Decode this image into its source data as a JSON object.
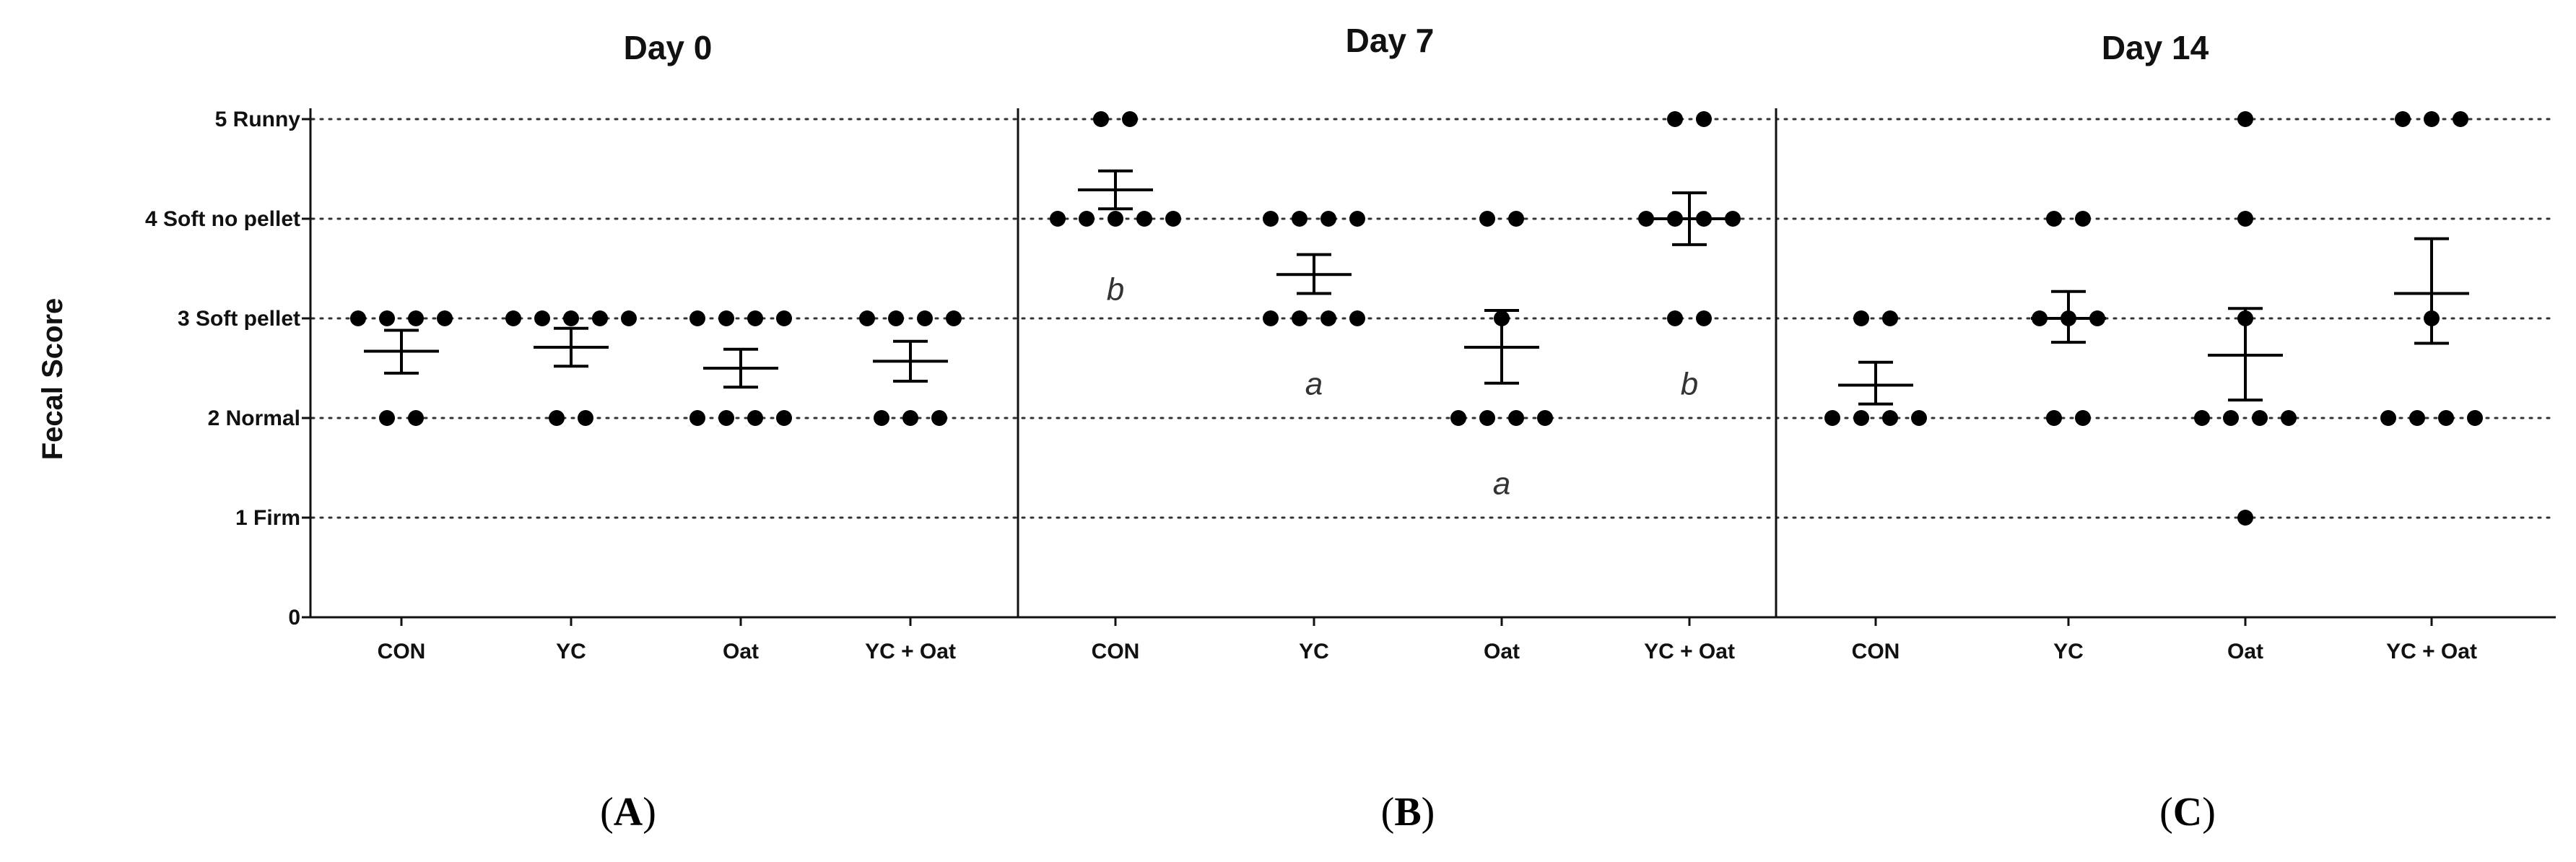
{
  "chart_data": {
    "type": "scatter",
    "ylabel": "Fecal Score",
    "ylim": [
      0,
      5
    ],
    "yticks": [
      {
        "value": 5,
        "label": "5 Runny"
      },
      {
        "value": 4,
        "label": "4 Soft no pellet"
      },
      {
        "value": 3,
        "label": "3 Soft pellet"
      },
      {
        "value": 2,
        "label": "2 Normal"
      },
      {
        "value": 1,
        "label": "1 Firm"
      },
      {
        "value": 0,
        "label": "0"
      }
    ],
    "grid": "dotted horizontal at 1-5",
    "categories": [
      "CON",
      "YC",
      "Oat",
      "YC + Oat"
    ],
    "panels": [
      {
        "title": "Day 0",
        "caption_open": "(",
        "caption_letter": "A",
        "caption_close": ")",
        "groups": [
          {
            "category": "CON",
            "points": [
              3,
              3,
              3,
              3,
              2,
              2
            ],
            "mean": 2.67,
            "sem_low": 2.45,
            "sem_high": 2.88,
            "annotation": ""
          },
          {
            "category": "YC",
            "points": [
              3,
              3,
              3,
              3,
              3,
              2,
              2
            ],
            "mean": 2.71,
            "sem_low": 2.52,
            "sem_high": 2.9,
            "annotation": ""
          },
          {
            "category": "Oat",
            "points": [
              3,
              3,
              3,
              3,
              2,
              2,
              2,
              2
            ],
            "mean": 2.5,
            "sem_low": 2.31,
            "sem_high": 2.69,
            "annotation": ""
          },
          {
            "category": "YC + Oat",
            "points": [
              3,
              3,
              3,
              3,
              2,
              2,
              2
            ],
            "mean": 2.57,
            "sem_low": 2.37,
            "sem_high": 2.77,
            "annotation": ""
          }
        ]
      },
      {
        "title": "Day 7",
        "caption_open": "(",
        "caption_letter": "B",
        "caption_close": ")",
        "groups": [
          {
            "category": "CON",
            "points": [
              5,
              5,
              4,
              4,
              4,
              4,
              4
            ],
            "mean": 4.29,
            "sem_low": 4.1,
            "sem_high": 4.48,
            "annotation": "b",
            "annotation_y": 3.3
          },
          {
            "category": "YC",
            "points": [
              4,
              4,
              4,
              4,
              3,
              3,
              3,
              3
            ],
            "mean": 3.44,
            "sem_low": 3.25,
            "sem_high": 3.64,
            "annotation": "a",
            "annotation_y": 2.35
          },
          {
            "category": "Oat",
            "points": [
              4,
              4,
              3,
              2,
              2,
              2,
              2
            ],
            "mean": 2.71,
            "sem_low": 2.35,
            "sem_high": 3.08,
            "annotation": "a",
            "annotation_y": 1.35
          },
          {
            "category": "YC + Oat",
            "points": [
              5,
              5,
              4,
              4,
              4,
              4,
              3,
              3
            ],
            "mean": 4.0,
            "sem_low": 3.74,
            "sem_high": 4.26,
            "annotation": "b",
            "annotation_y": 2.35
          }
        ]
      },
      {
        "title": "Day 14",
        "caption_open": "(",
        "caption_letter": "C",
        "caption_close": ")",
        "groups": [
          {
            "category": "CON",
            "points": [
              3,
              3,
              2,
              2,
              2,
              2
            ],
            "mean": 2.33,
            "sem_low": 2.14,
            "sem_high": 2.56,
            "annotation": ""
          },
          {
            "category": "YC",
            "points": [
              4,
              4,
              3,
              3,
              3,
              2,
              2
            ],
            "mean": 3.0,
            "sem_low": 2.76,
            "sem_high": 3.27,
            "annotation": ""
          },
          {
            "category": "Oat",
            "points": [
              5,
              4,
              3,
              2,
              2,
              2,
              2,
              1
            ],
            "mean": 2.63,
            "sem_low": 2.18,
            "sem_high": 3.1,
            "annotation": ""
          },
          {
            "category": "YC + Oat",
            "points": [
              5,
              5,
              5,
              3,
              2,
              2,
              2,
              2
            ],
            "mean": 3.25,
            "sem_low": 2.75,
            "sem_high": 3.8,
            "annotation": ""
          }
        ]
      }
    ]
  }
}
